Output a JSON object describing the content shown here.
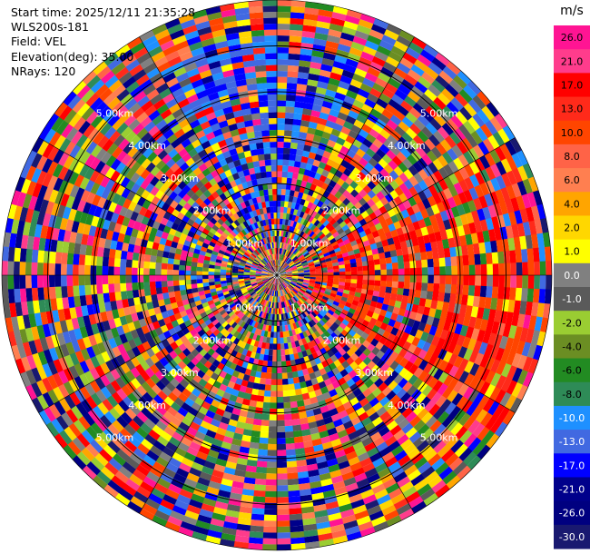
{
  "header": {
    "start_time": "Start time: 2025/12/11 21:35:28",
    "site": "WLS200s-181",
    "field": "Field: VEL",
    "elevation": "Elevation(deg): 35.00",
    "nrays": "NRays: 120"
  },
  "chart_data": {
    "type": "ppi",
    "field": "VEL",
    "units": "m/s",
    "nrays": 120,
    "range_rings_km": [
      1.0,
      2.0,
      3.0,
      4.0,
      5.0
    ],
    "ring_labels": [
      "1.00km",
      "2.00km",
      "3.00km",
      "4.00km",
      "5.00km"
    ],
    "max_range_km": 6.0,
    "colorbar": {
      "label": "m/s",
      "ticks": [
        "26.0",
        "21.0",
        "17.0",
        "13.0",
        "10.0",
        "8.0",
        "6.0",
        "4.0",
        "2.0",
        "1.0",
        "0.0",
        "-1.0",
        "-2.0",
        "-4.0",
        "-6.0",
        "-8.0",
        "-10.0",
        "-13.0",
        "-17.0",
        "-21.0",
        "-26.0",
        "-30.0"
      ],
      "colors": [
        "#ff1493",
        "#ff3c8c",
        "#ff0000",
        "#ff2a1a",
        "#ff4500",
        "#ff6347",
        "#ff7f50",
        "#ffa500",
        "#ffd700",
        "#ffff00",
        "#808080",
        "#5a5a5a",
        "#9acd32",
        "#6b8e23",
        "#228b22",
        "#2e8b57",
        "#1e90ff",
        "#4169e1",
        "#0000ff",
        "#00008b",
        "#000080",
        "#191970"
      ]
    }
  }
}
